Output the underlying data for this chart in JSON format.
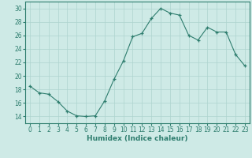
{
  "x": [
    0,
    1,
    2,
    3,
    4,
    5,
    6,
    7,
    8,
    9,
    10,
    11,
    12,
    13,
    14,
    15,
    16,
    17,
    18,
    19,
    20,
    21,
    22,
    23
  ],
  "y": [
    18.5,
    17.5,
    17.3,
    16.2,
    14.8,
    14.1,
    14.0,
    14.1,
    16.3,
    19.5,
    22.2,
    25.8,
    26.3,
    28.5,
    30.0,
    29.3,
    29.0,
    26.0,
    25.3,
    27.2,
    26.5,
    26.5,
    23.2,
    21.5
  ],
  "line_color": "#2e7d6e",
  "bg_color": "#ceeae6",
  "grid_color": "#aed4cf",
  "xlabel": "Humidex (Indice chaleur)",
  "xlim": [
    -0.5,
    23.5
  ],
  "ylim": [
    13,
    31
  ],
  "yticks": [
    14,
    16,
    18,
    20,
    22,
    24,
    26,
    28,
    30
  ],
  "xticks": [
    0,
    1,
    2,
    3,
    4,
    5,
    6,
    7,
    8,
    9,
    10,
    11,
    12,
    13,
    14,
    15,
    16,
    17,
    18,
    19,
    20,
    21,
    22,
    23
  ],
  "label_fontsize": 6.5,
  "tick_fontsize": 5.5
}
